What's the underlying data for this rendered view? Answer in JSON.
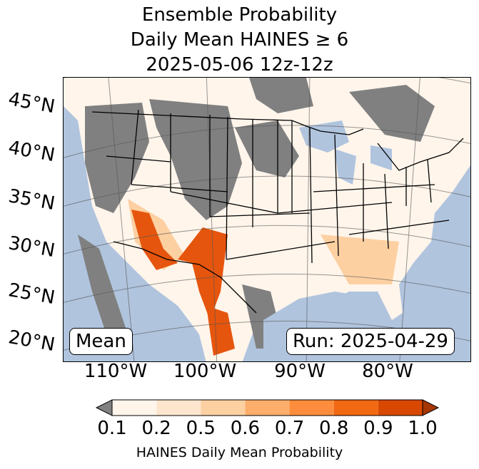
{
  "title": {
    "line1": "Ensemble Probability",
    "line2": "Daily Mean HAINES ≥ 6",
    "line3": "2025-05-06 12z-12z"
  },
  "map": {
    "lat_labels": [
      "45°N",
      "40°N",
      "35°N",
      "30°N",
      "25°N",
      "20°N"
    ],
    "lon_labels": [
      "110°W",
      "100°W",
      "90°W",
      "80°W"
    ],
    "mean_box": "Mean",
    "run_box": "Run: 2025-04-29",
    "colors": {
      "ocean": "#b0c4de",
      "missing": "#808080",
      "low": "#fff5eb",
      "mid": "#fdd0a2",
      "high": "#e6550d"
    }
  },
  "colorbar": {
    "ticks": [
      "0.1",
      "0.2",
      "0.5",
      "0.6",
      "0.7",
      "0.8",
      "0.9",
      "1.0"
    ],
    "label": "HAINES Daily Mean Probability",
    "colors": [
      "#fff5eb",
      "#fee6ce",
      "#fdd0a2",
      "#fdae6b",
      "#fd8d3c",
      "#f16913",
      "#d94801",
      "#a63603"
    ],
    "under_color": "#808080"
  }
}
